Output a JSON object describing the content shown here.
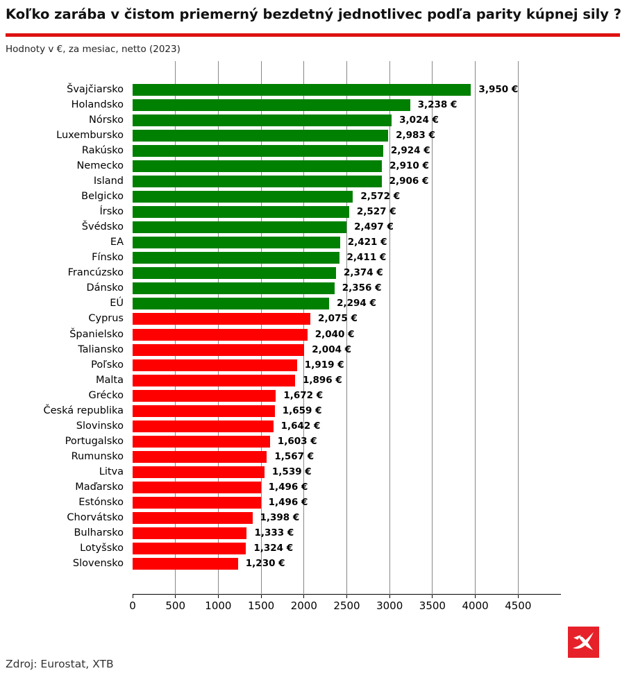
{
  "header": {
    "title": "Koľko zarába v čistom priemerný bezdetný jednotlivec podľa parity kúpnej sily ?",
    "subtitle": "Hodnoty v €, za mesiac, netto (2023)",
    "rule_color": "#dd1111"
  },
  "chart_data": {
    "type": "bar",
    "orientation": "horizontal",
    "title": "Koľko zarába v čistom priemerný bezdetný jednotlivec podľa parity kúpnej sily ?",
    "subtitle": "Hodnoty v €, za mesiac, netto (2023)",
    "unit": "€",
    "xlim": [
      0,
      5000
    ],
    "x_ticks": [
      0,
      500,
      1000,
      1500,
      2000,
      2500,
      3000,
      3500,
      4000,
      4500
    ],
    "grid": "vertical-gray-lines",
    "legend": "none",
    "group_colors": {
      "above_eu": "#008000",
      "below_eu": "#fe0000"
    },
    "countries": [
      {
        "name": "Švajčiarsko",
        "value": 3950,
        "label": "3,950 €",
        "group": "above_eu"
      },
      {
        "name": "Holandsko",
        "value": 3238,
        "label": "3,238 €",
        "group": "above_eu"
      },
      {
        "name": "Nórsko",
        "value": 3024,
        "label": "3,024 €",
        "group": "above_eu"
      },
      {
        "name": "Luxembursko",
        "value": 2983,
        "label": "2,983 €",
        "group": "above_eu"
      },
      {
        "name": "Rakúsko",
        "value": 2924,
        "label": "2,924 €",
        "group": "above_eu"
      },
      {
        "name": "Nemecko",
        "value": 2910,
        "label": "2,910 €",
        "group": "above_eu"
      },
      {
        "name": "Island",
        "value": 2906,
        "label": "2,906 €",
        "group": "above_eu"
      },
      {
        "name": "Belgicko",
        "value": 2572,
        "label": "2,572 €",
        "group": "above_eu"
      },
      {
        "name": "Írsko",
        "value": 2527,
        "label": "2,527 €",
        "group": "above_eu"
      },
      {
        "name": "Švédsko",
        "value": 2497,
        "label": "2,497 €",
        "group": "above_eu"
      },
      {
        "name": "EA",
        "value": 2421,
        "label": "2,421 €",
        "group": "above_eu"
      },
      {
        "name": "Fínsko",
        "value": 2411,
        "label": "2,411 €",
        "group": "above_eu"
      },
      {
        "name": "Francúzsko",
        "value": 2374,
        "label": "2,374 €",
        "group": "above_eu"
      },
      {
        "name": "Dánsko",
        "value": 2356,
        "label": "2,356 €",
        "group": "above_eu"
      },
      {
        "name": "EÚ",
        "value": 2294,
        "label": "2,294 €",
        "group": "above_eu"
      },
      {
        "name": "Cyprus",
        "value": 2075,
        "label": "2,075 €",
        "group": "below_eu"
      },
      {
        "name": "Španielsko",
        "value": 2040,
        "label": "2,040 €",
        "group": "below_eu"
      },
      {
        "name": "Taliansko",
        "value": 2004,
        "label": "2,004 €",
        "group": "below_eu"
      },
      {
        "name": "Poľsko",
        "value": 1919,
        "label": "1,919 €",
        "group": "below_eu"
      },
      {
        "name": "Malta",
        "value": 1896,
        "label": "1,896 €",
        "group": "below_eu"
      },
      {
        "name": "Grécko",
        "value": 1672,
        "label": "1,672 €",
        "group": "below_eu"
      },
      {
        "name": "Česká republika",
        "value": 1659,
        "label": "1,659 €",
        "group": "below_eu"
      },
      {
        "name": "Slovinsko",
        "value": 1642,
        "label": "1,642 €",
        "group": "below_eu"
      },
      {
        "name": "Portugalsko",
        "value": 1603,
        "label": "1,603 €",
        "group": "below_eu"
      },
      {
        "name": "Rumunsko",
        "value": 1567,
        "label": "1,567 €",
        "group": "below_eu"
      },
      {
        "name": "Litva",
        "value": 1539,
        "label": "1,539 €",
        "group": "below_eu"
      },
      {
        "name": "Maďarsko",
        "value": 1496,
        "label": "1,496 €",
        "group": "below_eu"
      },
      {
        "name": "Estónsko",
        "value": 1496,
        "label": "1,496 €",
        "group": "below_eu"
      },
      {
        "name": "Chorvátsko",
        "value": 1398,
        "label": "1,398 €",
        "group": "below_eu"
      },
      {
        "name": "Bulharsko",
        "value": 1333,
        "label": "1,333 €",
        "group": "below_eu"
      },
      {
        "name": "Lotyšsko",
        "value": 1324,
        "label": "1,324 €",
        "group": "below_eu"
      },
      {
        "name": "Slovensko",
        "value": 1230,
        "label": "1,230 €",
        "group": "below_eu"
      }
    ]
  },
  "footer": {
    "source": "Zdroj: Eurostat, XTB",
    "logo_name": "XTB",
    "logo_color": "#e62129"
  }
}
